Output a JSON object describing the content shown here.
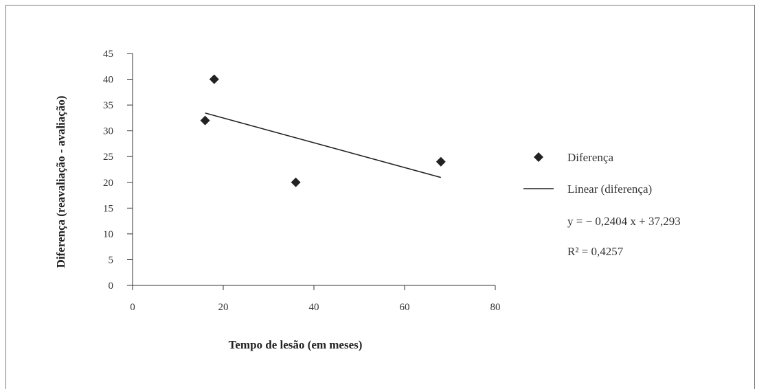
{
  "chart_data": {
    "type": "scatter",
    "xlabel": "Tempo de lesão (em meses)",
    "ylabel": "Diferença (reavaliação - avaliação)",
    "xlim": [
      0,
      80
    ],
    "ylim": [
      0,
      45
    ],
    "x_ticks": [
      "0",
      "20",
      "40",
      "60",
      "80"
    ],
    "y_ticks": [
      "0",
      "5",
      "10",
      "15",
      "20",
      "25",
      "30",
      "35",
      "40",
      "45"
    ],
    "grid": false,
    "legend_position": "right",
    "series": [
      {
        "name": "Diferença",
        "marker": "diamond",
        "color": "#222222",
        "points": [
          {
            "x": 16,
            "y": 32
          },
          {
            "x": 18,
            "y": 40
          },
          {
            "x": 36,
            "y": 20
          },
          {
            "x": 68,
            "y": 24
          }
        ]
      },
      {
        "name": "Linear (diferença)",
        "kind": "trendline",
        "color": "#222222",
        "slope": -0.2404,
        "intercept": 37.293,
        "x_range": [
          16,
          68
        ]
      }
    ],
    "annotations": {
      "equation": "y = − 0,2404 x + 37,293",
      "r_squared": "R² = 0,4257"
    }
  }
}
